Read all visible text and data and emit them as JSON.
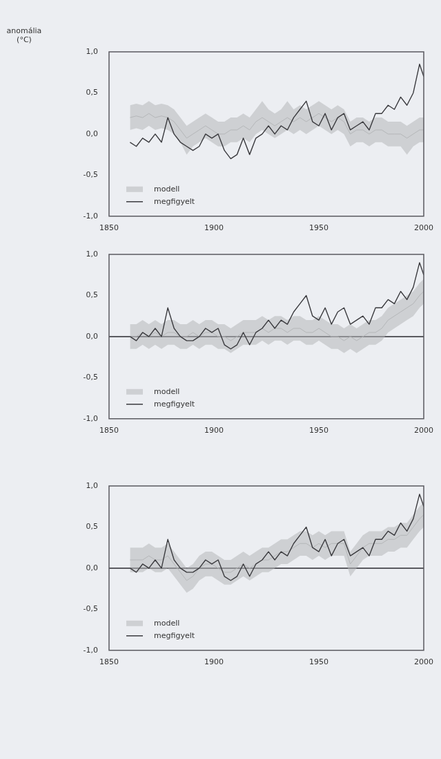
{
  "chart_data": [
    {
      "type": "line",
      "ylabel": "anomália (°C)",
      "legend": "bottom left",
      "grid": false,
      "x": [
        1860,
        1863,
        1866,
        1869,
        1872,
        1875,
        1878,
        1881,
        1884,
        1887,
        1890,
        1893,
        1896,
        1899,
        1902,
        1905,
        1908,
        1911,
        1914,
        1917,
        1920,
        1923,
        1926,
        1929,
        1932,
        1935,
        1938,
        1941,
        1944,
        1947,
        1950,
        1953,
        1956,
        1959,
        1962,
        1965,
        1968,
        1971,
        1974,
        1977,
        1980,
        1983,
        1986,
        1989,
        1992,
        1995,
        1998,
        2000
      ],
      "xlim": [
        1850,
        2000
      ],
      "xticks": [
        1850,
        1900,
        1950,
        2000
      ],
      "ylim": [
        -1,
        1
      ],
      "yticks": [
        {
          "value": 1,
          "label": "1,0"
        },
        {
          "value": 0.5,
          "label": "0,5"
        },
        {
          "value": 0,
          "label": "0,0"
        },
        {
          "value": -0.5,
          "label": "-0,5"
        },
        {
          "value": -1,
          "label": "-1,0"
        }
      ],
      "series": [
        {
          "name": "modell",
          "color": "#b4b6b8",
          "values": [
            0.2,
            0.22,
            0.2,
            0.25,
            0.2,
            0.22,
            0.2,
            0.15,
            0.05,
            -0.05,
            0,
            0.05,
            0.1,
            0.05,
            0,
            0,
            0.05,
            0.05,
            0.1,
            0.05,
            0.15,
            0.2,
            0.15,
            0.1,
            0.15,
            0.2,
            0.15,
            0.2,
            0.15,
            0.2,
            0.25,
            0.2,
            0.15,
            0.2,
            0.15,
            0,
            0.05,
            0.05,
            0,
            0.05,
            0.05,
            0,
            0,
            0,
            -0.05,
            0,
            0.05,
            0.05
          ],
          "lower": [
            0.05,
            0.07,
            0.05,
            0.1,
            0.05,
            0.07,
            0.05,
            0,
            -0.1,
            -0.25,
            -0.15,
            -0.1,
            -0.05,
            -0.1,
            -0.15,
            -0.15,
            -0.1,
            -0.1,
            -0.05,
            -0.1,
            0,
            0.05,
            0,
            -0.05,
            0,
            0.05,
            0,
            0.05,
            0,
            0.05,
            0.1,
            0.05,
            0,
            0.05,
            0,
            -0.15,
            -0.1,
            -0.1,
            -0.15,
            -0.1,
            -0.1,
            -0.15,
            -0.15,
            -0.15,
            -0.25,
            -0.15,
            -0.1,
            -0.1
          ],
          "upper": [
            0.35,
            0.37,
            0.35,
            0.4,
            0.35,
            0.37,
            0.35,
            0.3,
            0.2,
            0.1,
            0.15,
            0.2,
            0.25,
            0.2,
            0.15,
            0.15,
            0.2,
            0.2,
            0.25,
            0.2,
            0.3,
            0.4,
            0.3,
            0.25,
            0.3,
            0.4,
            0.3,
            0.35,
            0.3,
            0.35,
            0.4,
            0.35,
            0.3,
            0.35,
            0.3,
            0.15,
            0.2,
            0.2,
            0.15,
            0.2,
            0.2,
            0.15,
            0.15,
            0.15,
            0.1,
            0.15,
            0.2,
            0.2
          ]
        },
        {
          "name": "megfigyelt",
          "color": "#3a3a3e",
          "values": [
            -0.1,
            -0.15,
            -0.05,
            -0.1,
            0,
            -0.1,
            0.2,
            0,
            -0.1,
            -0.15,
            -0.2,
            -0.15,
            0,
            -0.05,
            0,
            -0.2,
            -0.3,
            -0.25,
            -0.05,
            -0.25,
            -0.05,
            0,
            0.1,
            0,
            0.1,
            0.05,
            0.2,
            0.3,
            0.4,
            0.15,
            0.1,
            0.25,
            0.05,
            0.2,
            0.25,
            0.05,
            0.1,
            0.15,
            0.05,
            0.25,
            0.25,
            0.35,
            0.3,
            0.45,
            0.35,
            0.5,
            0.85,
            0.7
          ]
        }
      ]
    },
    {
      "type": "line",
      "legend": "bottom left",
      "grid": false,
      "x": [
        1860,
        1863,
        1866,
        1869,
        1872,
        1875,
        1878,
        1881,
        1884,
        1887,
        1890,
        1893,
        1896,
        1899,
        1902,
        1905,
        1908,
        1911,
        1914,
        1917,
        1920,
        1923,
        1926,
        1929,
        1932,
        1935,
        1938,
        1941,
        1944,
        1947,
        1950,
        1953,
        1956,
        1959,
        1962,
        1965,
        1968,
        1971,
        1974,
        1977,
        1980,
        1983,
        1986,
        1989,
        1992,
        1995,
        1998,
        2000
      ],
      "xlim": [
        1850,
        2000
      ],
      "xticks": [
        1850,
        1900,
        1950,
        2000
      ],
      "ylim": [
        -1,
        1
      ],
      "yticks": [
        {
          "value": 1,
          "label": "1,0"
        },
        {
          "value": 0.5,
          "label": "0,5"
        },
        {
          "value": 0,
          "label": "0,0"
        },
        {
          "value": -0.5,
          "label": "-0,5"
        },
        {
          "value": -1,
          "label": "-1,0"
        }
      ],
      "ref_lines": [
        {
          "axis": "y",
          "value": 0,
          "color": "#5a5a60"
        }
      ],
      "series": [
        {
          "name": "modell",
          "color": "#b4b6b8",
          "values": [
            0,
            0,
            0.05,
            0,
            0.05,
            0,
            0.05,
            0.05,
            0,
            0,
            0.05,
            0,
            0.05,
            0.05,
            0,
            0,
            -0.05,
            0,
            0.05,
            0.05,
            0.05,
            0.1,
            0.05,
            0.1,
            0.1,
            0.05,
            0.1,
            0.1,
            0.05,
            0.05,
            0.1,
            0.05,
            0,
            0,
            -0.05,
            0,
            -0.05,
            0,
            0.05,
            0.05,
            0.1,
            0.2,
            0.25,
            0.3,
            0.35,
            0.4,
            0.5,
            0.55
          ],
          "lower": [
            -0.15,
            -0.15,
            -0.1,
            -0.15,
            -0.1,
            -0.15,
            -0.1,
            -0.1,
            -0.15,
            -0.15,
            -0.1,
            -0.15,
            -0.1,
            -0.1,
            -0.15,
            -0.15,
            -0.2,
            -0.15,
            -0.1,
            -0.1,
            -0.1,
            -0.05,
            -0.1,
            -0.05,
            -0.05,
            -0.1,
            -0.05,
            -0.05,
            -0.1,
            -0.1,
            -0.05,
            -0.1,
            -0.15,
            -0.15,
            -0.2,
            -0.15,
            -0.2,
            -0.15,
            -0.1,
            -0.1,
            -0.05,
            0.05,
            0.1,
            0.15,
            0.2,
            0.25,
            0.35,
            0.4
          ],
          "upper": [
            0.15,
            0.15,
            0.2,
            0.15,
            0.2,
            0.15,
            0.2,
            0.2,
            0.15,
            0.15,
            0.2,
            0.15,
            0.2,
            0.2,
            0.15,
            0.15,
            0.1,
            0.15,
            0.2,
            0.2,
            0.2,
            0.25,
            0.2,
            0.25,
            0.25,
            0.2,
            0.25,
            0.25,
            0.2,
            0.2,
            0.25,
            0.2,
            0.15,
            0.15,
            0.1,
            0.15,
            0.1,
            0.15,
            0.2,
            0.2,
            0.25,
            0.35,
            0.4,
            0.45,
            0.5,
            0.55,
            0.65,
            0.7
          ]
        },
        {
          "name": "megfigyelt",
          "color": "#3a3a3e",
          "values": [
            0,
            -0.05,
            0.05,
            0,
            0.1,
            0,
            0.35,
            0.1,
            0,
            -0.05,
            -0.05,
            0,
            0.1,
            0.05,
            0.1,
            -0.1,
            -0.15,
            -0.1,
            0.05,
            -0.1,
            0.05,
            0.1,
            0.2,
            0.1,
            0.2,
            0.15,
            0.3,
            0.4,
            0.5,
            0.25,
            0.2,
            0.35,
            0.15,
            0.3,
            0.35,
            0.15,
            0.2,
            0.25,
            0.15,
            0.35,
            0.35,
            0.45,
            0.4,
            0.55,
            0.45,
            0.6,
            0.9,
            0.75
          ]
        }
      ]
    },
    {
      "type": "line",
      "legend": "bottom left",
      "grid": false,
      "x": [
        1860,
        1863,
        1866,
        1869,
        1872,
        1875,
        1878,
        1881,
        1884,
        1887,
        1890,
        1893,
        1896,
        1899,
        1902,
        1905,
        1908,
        1911,
        1914,
        1917,
        1920,
        1923,
        1926,
        1929,
        1932,
        1935,
        1938,
        1941,
        1944,
        1947,
        1950,
        1953,
        1956,
        1959,
        1962,
        1965,
        1968,
        1971,
        1974,
        1977,
        1980,
        1983,
        1986,
        1989,
        1992,
        1995,
        1998,
        2000
      ],
      "xlim": [
        1850,
        2000
      ],
      "xticks": [
        1850,
        1900,
        1950,
        2000
      ],
      "ylim": [
        -1,
        1
      ],
      "yticks": [
        {
          "value": 1,
          "label": "1,0"
        },
        {
          "value": 0.5,
          "label": "0,5"
        },
        {
          "value": 0,
          "label": "0,0"
        },
        {
          "value": -0.5,
          "label": "-0,5"
        },
        {
          "value": -1,
          "label": "-1,0"
        }
      ],
      "ref_lines": [
        {
          "axis": "y",
          "value": 0,
          "color": "#5a5a60"
        }
      ],
      "series": [
        {
          "name": "modell",
          "color": "#b4b6b8",
          "values": [
            0.1,
            0.1,
            0.1,
            0.15,
            0.1,
            0.1,
            0.15,
            0.05,
            -0.05,
            -0.15,
            -0.1,
            0,
            0.05,
            0.05,
            0,
            -0.05,
            -0.05,
            0,
            0.05,
            0,
            0.05,
            0.1,
            0.1,
            0.15,
            0.2,
            0.2,
            0.25,
            0.3,
            0.3,
            0.25,
            0.3,
            0.25,
            0.3,
            0.3,
            0.3,
            0.05,
            0.15,
            0.25,
            0.3,
            0.3,
            0.3,
            0.35,
            0.35,
            0.4,
            0.4,
            0.5,
            0.6,
            0.65
          ],
          "lower": [
            -0.05,
            -0.05,
            -0.05,
            0,
            -0.05,
            -0.05,
            0,
            -0.1,
            -0.2,
            -0.3,
            -0.25,
            -0.15,
            -0.1,
            -0.1,
            -0.15,
            -0.2,
            -0.2,
            -0.15,
            -0.1,
            -0.15,
            -0.1,
            -0.05,
            -0.05,
            0,
            0.05,
            0.05,
            0.1,
            0.15,
            0.15,
            0.1,
            0.15,
            0.1,
            0.15,
            0.15,
            0.15,
            -0.1,
            0,
            0.1,
            0.15,
            0.15,
            0.15,
            0.2,
            0.2,
            0.25,
            0.25,
            0.35,
            0.45,
            0.5
          ],
          "upper": [
            0.25,
            0.25,
            0.25,
            0.3,
            0.25,
            0.25,
            0.3,
            0.2,
            0.1,
            0,
            0.05,
            0.15,
            0.2,
            0.2,
            0.15,
            0.1,
            0.1,
            0.15,
            0.2,
            0.15,
            0.2,
            0.25,
            0.25,
            0.3,
            0.35,
            0.35,
            0.4,
            0.45,
            0.45,
            0.4,
            0.45,
            0.4,
            0.45,
            0.45,
            0.45,
            0.2,
            0.3,
            0.4,
            0.45,
            0.45,
            0.45,
            0.5,
            0.5,
            0.55,
            0.55,
            0.65,
            0.75,
            0.8
          ]
        },
        {
          "name": "megfigyelt",
          "color": "#3a3a3e",
          "values": [
            0,
            -0.05,
            0.05,
            0,
            0.1,
            0,
            0.35,
            0.1,
            0,
            -0.05,
            -0.05,
            0,
            0.1,
            0.05,
            0.1,
            -0.1,
            -0.15,
            -0.1,
            0.05,
            -0.1,
            0.05,
            0.1,
            0.2,
            0.1,
            0.2,
            0.15,
            0.3,
            0.4,
            0.5,
            0.25,
            0.2,
            0.35,
            0.15,
            0.3,
            0.35,
            0.15,
            0.2,
            0.25,
            0.15,
            0.35,
            0.35,
            0.45,
            0.4,
            0.55,
            0.45,
            0.6,
            0.9,
            0.75
          ]
        }
      ]
    }
  ]
}
